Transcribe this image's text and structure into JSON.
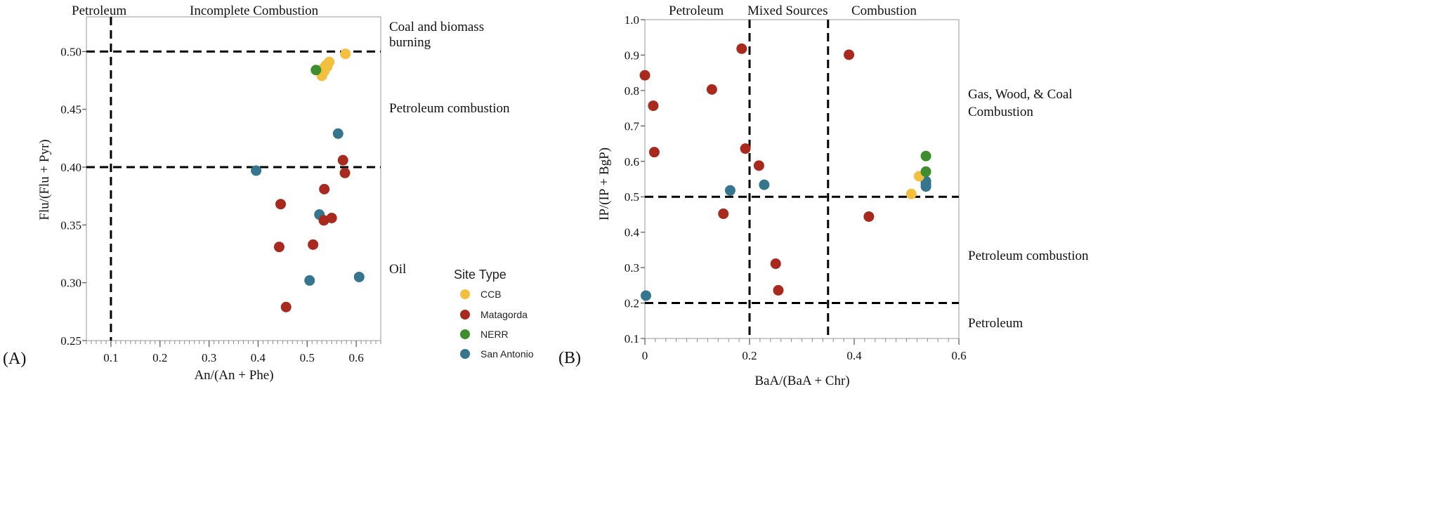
{
  "colors": {
    "CCB": "#F2BF3E",
    "Matagorda": "#A82A1E",
    "NERR": "#3F8E2E",
    "San Antonio": "#35768E"
  },
  "panelA_label": "(A)",
  "panelB_label": "(B)",
  "legend": {
    "title": "Site Type",
    "items": [
      "CCB",
      "Matagorda",
      "NERR",
      "San Antonio"
    ]
  },
  "chart_data": [
    {
      "type": "scatter",
      "panel": "A",
      "xlabel": "An/(An + Phe)",
      "ylabel": "Flu/(Flu + Pyr)",
      "xlim": [
        0.05,
        0.65
      ],
      "ylim": [
        0.25,
        0.53
      ],
      "xticks": [
        "0.1",
        "0.2",
        "0.3",
        "0.4",
        "0.5",
        "0.6"
      ],
      "yticks": [
        "0.25",
        "0.30",
        "0.35",
        "0.40",
        "0.45",
        "0.50"
      ],
      "vlines": [
        0.1
      ],
      "hlines": [
        0.4,
        0.5
      ],
      "region_labels": {
        "top_left": "Petroleum",
        "top_right": "Incomplete Combustion",
        "right_1_line1": "Coal and biomass",
        "right_1_line2": "burning",
        "right_2": "Petroleum combustion",
        "right_3": "Oil"
      },
      "series": [
        {
          "name": "CCB",
          "points": [
            [
              0.578,
              0.498
            ],
            [
              0.545,
              0.491
            ],
            [
              0.532,
              0.485
            ],
            [
              0.538,
              0.488
            ],
            [
              0.528,
              0.482
            ],
            [
              0.53,
              0.479
            ],
            [
              0.535,
              0.483
            ],
            [
              0.541,
              0.487
            ]
          ]
        },
        {
          "name": "NERR",
          "points": [
            [
              0.518,
              0.484
            ]
          ]
        },
        {
          "name": "San Antonio",
          "points": [
            [
              0.563,
              0.429
            ],
            [
              0.396,
              0.397
            ],
            [
              0.525,
              0.359
            ],
            [
              0.606,
              0.305
            ],
            [
              0.505,
              0.302
            ]
          ]
        },
        {
          "name": "Matagorda",
          "points": [
            [
              0.573,
              0.406
            ],
            [
              0.577,
              0.395
            ],
            [
              0.535,
              0.381
            ],
            [
              0.446,
              0.368
            ],
            [
              0.55,
              0.356
            ],
            [
              0.534,
              0.354
            ],
            [
              0.443,
              0.331
            ],
            [
              0.512,
              0.333
            ],
            [
              0.457,
              0.279
            ]
          ]
        }
      ]
    },
    {
      "type": "scatter",
      "panel": "B",
      "xlabel": "BaA/(BaA + Chr)",
      "ylabel": "IP/(IP + BgP)",
      "xlim": [
        0,
        0.6
      ],
      "ylim": [
        0.1,
        1.0
      ],
      "xticks": [
        "0",
        "0.2",
        "0.4",
        "0.6"
      ],
      "yticks": [
        "0.1",
        "0.2",
        "0.3",
        "0.4",
        "0.5",
        "0.6",
        "0.7",
        "0.8",
        "0.9",
        "1.0"
      ],
      "vlines": [
        0.2,
        0.35
      ],
      "hlines": [
        0.2,
        0.5
      ],
      "region_labels": {
        "top_1": "Petroleum",
        "top_2": "Mixed Sources",
        "top_3": "Combustion",
        "right_1_line1": "Gas, Wood, & Coal",
        "right_1_line2": "Combustion",
        "right_2": "Petroleum combustion",
        "right_3": "Petroleum"
      },
      "series": [
        {
          "name": "Matagorda",
          "points": [
            [
              0.0,
              0.843
            ],
            [
              0.016,
              0.757
            ],
            [
              0.018,
              0.626
            ],
            [
              0.128,
              0.803
            ],
            [
              0.185,
              0.918
            ],
            [
              0.192,
              0.636
            ],
            [
              0.218,
              0.588
            ],
            [
              0.15,
              0.452
            ],
            [
              0.39,
              0.901
            ],
            [
              0.428,
              0.444
            ],
            [
              0.25,
              0.311
            ],
            [
              0.255,
              0.236
            ]
          ]
        },
        {
          "name": "San Antonio",
          "points": [
            [
              0.163,
              0.518
            ],
            [
              0.228,
              0.534
            ],
            [
              0.002,
              0.221
            ],
            [
              0.537,
              0.544
            ],
            [
              0.537,
              0.536
            ],
            [
              0.537,
              0.529
            ]
          ]
        },
        {
          "name": "CCB",
          "points": [
            [
              0.524,
              0.558
            ],
            [
              0.509,
              0.508
            ]
          ]
        },
        {
          "name": "NERR",
          "points": [
            [
              0.537,
              0.615
            ],
            [
              0.537,
              0.571
            ]
          ]
        }
      ]
    }
  ]
}
